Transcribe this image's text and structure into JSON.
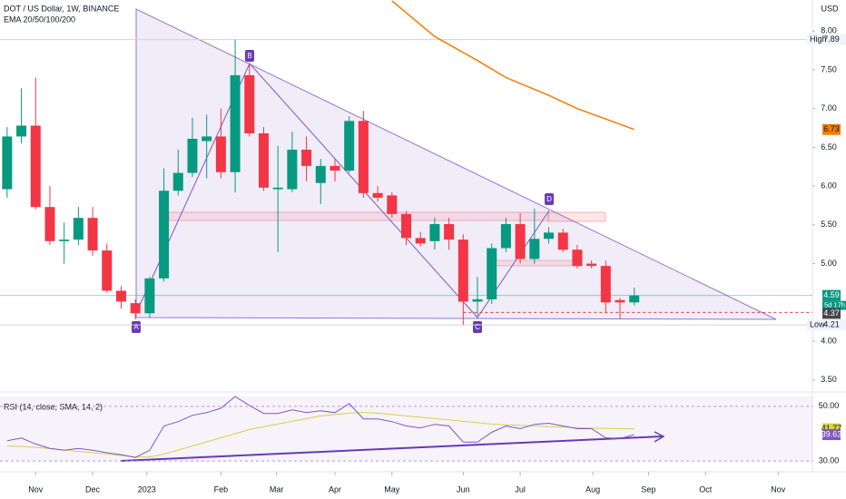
{
  "chart_data": {
    "type": "candlestick",
    "title": "DOT / US Dollar, 1W, BINANCE",
    "currency": "USD",
    "indicator_label": "EMA 20/50/100/200",
    "x": [
      0,
      1,
      2,
      3,
      4,
      5,
      6,
      7,
      8,
      9,
      10,
      11,
      12,
      13,
      14,
      15,
      16,
      17,
      18,
      19,
      20,
      21,
      22,
      23,
      24,
      25,
      26,
      27,
      28,
      29,
      30,
      31,
      32,
      33,
      34,
      35,
      36,
      37,
      38,
      39,
      40,
      41,
      42,
      43,
      44
    ],
    "open": [
      5.96,
      6.64,
      6.78,
      5.73,
      5.29,
      5.31,
      5.59,
      5.17,
      4.65,
      4.49,
      4.36,
      4.81,
      5.94,
      6.17,
      6.58,
      6.64,
      6.18,
      7.43,
      6.68,
      5.96,
      5.96,
      6.47,
      6.04,
      6.26,
      6.2,
      6.84,
      5.91,
      5.88,
      5.64,
      5.33,
      5.29,
      5.51,
      5.31,
      4.51,
      4.54,
      5.2,
      5.51,
      5.06,
      5.32,
      5.4,
      5.18,
      5.0,
      4.97,
      4.53,
      4.5
    ],
    "high": [
      6.76,
      7.26,
      7.4,
      6.0,
      5.53,
      5.73,
      5.73,
      5.26,
      4.71,
      4.54,
      4.83,
      6.23,
      6.47,
      6.88,
      6.92,
      7.0,
      7.89,
      7.58,
      6.76,
      6.52,
      6.7,
      6.64,
      6.35,
      6.35,
      6.9,
      6.97,
      6.0,
      5.92,
      5.68,
      5.41,
      5.59,
      5.59,
      5.38,
      4.83,
      5.26,
      5.59,
      5.65,
      5.71,
      5.47,
      5.45,
      5.24,
      5.04,
      5.04,
      4.56,
      4.69
    ],
    "low": [
      5.85,
      6.55,
      5.7,
      5.24,
      5.0,
      5.24,
      5.1,
      4.63,
      4.42,
      4.28,
      4.3,
      4.77,
      5.88,
      6.12,
      6.1,
      6.1,
      5.92,
      6.64,
      5.94,
      5.15,
      5.92,
      6.06,
      5.77,
      6.06,
      6.17,
      5.85,
      5.8,
      5.59,
      5.24,
      5.22,
      5.18,
      5.18,
      4.21,
      4.33,
      4.48,
      5.15,
      5.0,
      5.0,
      5.26,
      5.15,
      4.94,
      4.94,
      4.36,
      4.28,
      4.46
    ],
    "close": [
      6.64,
      6.78,
      5.73,
      5.29,
      5.31,
      5.59,
      5.17,
      4.65,
      4.51,
      4.36,
      4.81,
      5.94,
      6.17,
      6.61,
      6.64,
      6.18,
      7.43,
      6.68,
      5.98,
      5.98,
      6.47,
      6.26,
      6.26,
      6.2,
      6.84,
      5.91,
      5.85,
      5.64,
      5.33,
      5.26,
      5.51,
      5.31,
      4.51,
      4.54,
      5.2,
      5.51,
      5.06,
      5.32,
      5.4,
      5.18,
      4.97,
      4.97,
      4.5,
      4.5,
      4.59
    ],
    "up_color": "#089981",
    "down_color": "#f23645",
    "xlim": [
      -0.5,
      56.5
    ],
    "xticks": [
      {
        "value": 2,
        "label": "Nov"
      },
      {
        "value": 6,
        "label": "Dec"
      },
      {
        "value": 9.8,
        "label": "2023"
      },
      {
        "value": 15,
        "label": "Feb"
      },
      {
        "value": 18.9,
        "label": "Mar"
      },
      {
        "value": 23,
        "label": "Apr"
      },
      {
        "value": 27,
        "label": "May"
      },
      {
        "value": 32,
        "label": "Jun"
      },
      {
        "value": 36,
        "label": "Jul"
      },
      {
        "value": 41.1,
        "label": "Aug"
      },
      {
        "value": 45,
        "label": "Sep"
      },
      {
        "value": 49,
        "label": "Oct"
      },
      {
        "value": 54.1,
        "label": "Nov"
      }
    ],
    "ylim": [
      3.35,
      8.4
    ],
    "yticks": [
      {
        "value": 8,
        "label": "8.00"
      },
      {
        "value": 7.5,
        "label": "7.50"
      },
      {
        "value": 7,
        "label": "7.00"
      },
      {
        "value": 6.5,
        "label": "6.50"
      },
      {
        "value": 6,
        "label": "6.00"
      },
      {
        "value": 5.5,
        "label": "5.50"
      },
      {
        "value": 5,
        "label": "5.00"
      },
      {
        "value": 4,
        "label": "4.00"
      },
      {
        "value": 3.5,
        "label": "3.50"
      }
    ],
    "ema": {
      "color": "#f57c00",
      "x": [
        27,
        30,
        33,
        35,
        38,
        40,
        44
      ],
      "values": [
        8.39,
        7.93,
        7.62,
        7.4,
        7.17,
        7.0,
        6.73
      ]
    },
    "high_label": "High",
    "low_label": "Low",
    "countdown": "5d 17h",
    "level": 4.37,
    "rsi": {
      "label": "RSI (14, close, SMA, 14, 2)",
      "color": "#7e57c2",
      "values": [
        37.4,
        38.4,
        36.2,
        34.6,
        33.9,
        34.6,
        33.9,
        33.0,
        32.3,
        31.3,
        33.9,
        42.8,
        44.4,
        46.7,
        47.7,
        49.3,
        53.6,
        50.3,
        47.4,
        47.4,
        48.7,
        47.7,
        48.4,
        47.7,
        51.0,
        45.4,
        45.4,
        44.4,
        42.8,
        42.1,
        43.4,
        42.8,
        36.9,
        36.9,
        40.5,
        42.8,
        41.8,
        43.4,
        43.8,
        42.8,
        41.8,
        41.8,
        38.5,
        38.2,
        39.63
      ],
      "sma_color": "#d9cf4a",
      "sma": [
        35.5,
        35.3,
        35.0,
        34.5,
        34.0,
        33.5,
        33.0,
        32.5,
        32.0,
        31.5,
        31.5,
        32.5,
        34.0,
        35.5,
        37.0,
        38.5,
        40.0,
        41.5,
        42.5,
        43.5,
        44.5,
        45.5,
        46.5,
        47.0,
        47.5,
        47.8,
        47.5,
        47.0,
        46.5,
        46.0,
        45.5,
        45.0,
        44.5,
        44.0,
        43.5,
        43.2,
        43.0,
        42.8,
        42.6,
        42.4,
        42.2,
        42.0,
        41.9,
        41.8,
        41.77
      ],
      "ylim": [
        27.7,
        53.6
      ],
      "yticks": [
        {
          "value": 50,
          "label": "50.00"
        },
        {
          "value": 30,
          "label": "30.00"
        }
      ]
    }
  },
  "drawing": {
    "points": [
      "A",
      "B",
      "C",
      "D"
    ]
  }
}
